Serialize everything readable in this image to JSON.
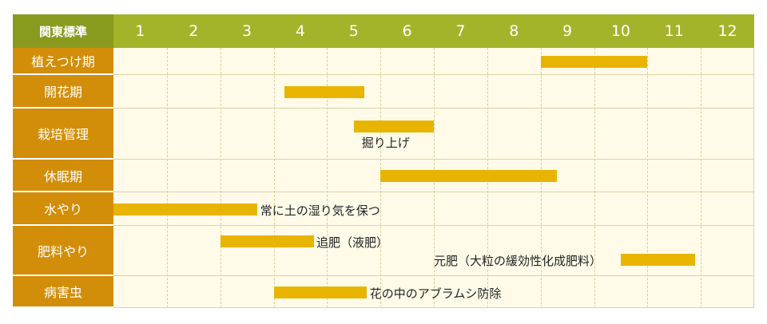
{
  "chart_data": {
    "type": "table",
    "header_label": "関東標準",
    "months": [
      "1",
      "2",
      "3",
      "4",
      "5",
      "6",
      "7",
      "8",
      "9",
      "10",
      "11",
      "12"
    ],
    "rows": [
      {
        "label": "植えつけ期",
        "bars": [
          {
            "start": 9.0,
            "end": 11.0
          }
        ],
        "annotations": []
      },
      {
        "label": "開花期",
        "bars": [
          {
            "start": 4.2,
            "end": 5.7
          }
        ],
        "annotations": []
      },
      {
        "label": "栽培管理",
        "bars": [
          {
            "start": 5.5,
            "end": 7.0
          }
        ],
        "annotations": [
          {
            "text": "掘り上げ",
            "near_month": 5.65
          }
        ]
      },
      {
        "label": "休眠期",
        "bars": [
          {
            "start": 6.0,
            "end": 9.3
          }
        ],
        "annotations": []
      },
      {
        "label": "水やり",
        "bars": [
          {
            "start": 1.0,
            "end": 3.7
          }
        ],
        "annotations": [
          {
            "text": "常に土の湿り気を保つ",
            "near_month": 3.75
          }
        ]
      },
      {
        "label": "肥料やり",
        "bars": [
          {
            "start": 3.0,
            "end": 4.75
          },
          {
            "start": 10.5,
            "end": 11.9
          }
        ],
        "annotations": [
          {
            "text": "追肥（液肥）",
            "near_month": 4.8
          },
          {
            "text": "元肥（大粒の緩効性化成肥料）",
            "near_month": 7.0
          }
        ]
      },
      {
        "label": "病害虫",
        "bars": [
          {
            "start": 4.0,
            "end": 5.75
          }
        ],
        "annotations": [
          {
            "text": "花の中のアブラムシ防除",
            "near_month": 5.8
          }
        ]
      }
    ]
  },
  "colors": {
    "header": "#a4b42a",
    "header_corner": "#8a9a1e",
    "label_bg": "#d28e08",
    "bar": "#e8b400",
    "row_bg": "#fffbe8"
  }
}
